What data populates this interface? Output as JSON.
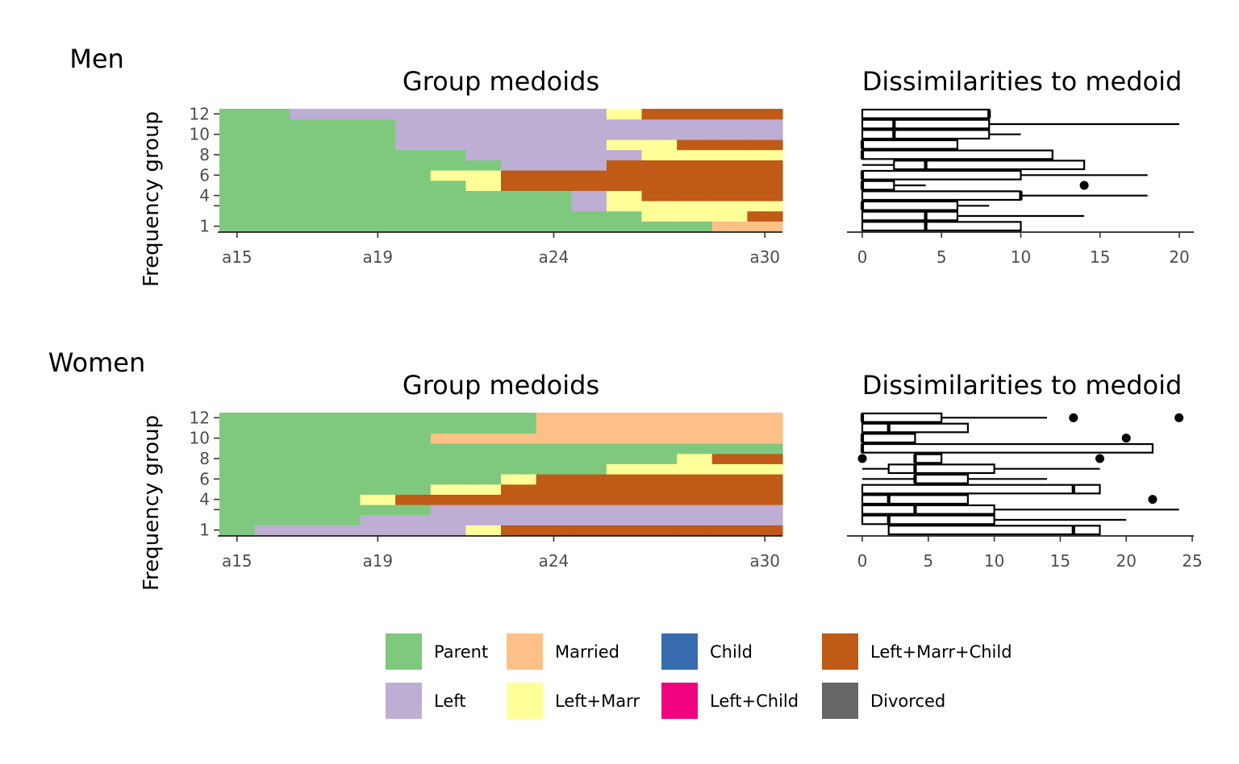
{
  "legend": [
    {
      "label": "Parent",
      "color": "#7FC97F"
    },
    {
      "label": "Married",
      "color": "#FDC086"
    },
    {
      "label": "Child",
      "color": "#386CB0"
    },
    {
      "label": "Left+Marr+Child",
      "color": "#BF5B17"
    },
    {
      "label": "Left",
      "color": "#BEAED4"
    },
    {
      "label": "Left+Marr",
      "color": "#FFFF99"
    },
    {
      "label": "Left+Child",
      "color": "#F0027F"
    },
    {
      "label": "Divorced",
      "color": "#666666"
    }
  ],
  "chart_data": [
    {
      "type": "heatmap",
      "panel": "Men",
      "title": "Group medoids",
      "ylabel": "Frequency group",
      "xlabel": "",
      "time_points": [
        "a15",
        "a16",
        "a17",
        "a18",
        "a19",
        "a20",
        "a21",
        "a22",
        "a23",
        "a24",
        "a25",
        "a26",
        "a27",
        "a28",
        "a29",
        "a30"
      ],
      "x_ticks": [
        "a15",
        "a19",
        "a24",
        "a30"
      ],
      "y_ticks": [
        "1",
        "",
        "4",
        "6",
        "8",
        "10",
        "12"
      ],
      "rows": [
        {
          "group": 1,
          "states": [
            "Parent",
            "Parent",
            "Parent",
            "Parent",
            "Parent",
            "Parent",
            "Parent",
            "Parent",
            "Parent",
            "Parent",
            "Parent",
            "Parent",
            "Parent",
            "Parent",
            "Married",
            "Married"
          ]
        },
        {
          "group": 2,
          "states": [
            "Parent",
            "Parent",
            "Parent",
            "Parent",
            "Parent",
            "Parent",
            "Parent",
            "Parent",
            "Parent",
            "Parent",
            "Parent",
            "Parent",
            "Left+Marr",
            "Left+Marr",
            "Left+Marr",
            "Left+Marr+Child"
          ]
        },
        {
          "group": 3,
          "states": [
            "Parent",
            "Parent",
            "Parent",
            "Parent",
            "Parent",
            "Parent",
            "Parent",
            "Parent",
            "Parent",
            "Parent",
            "Left",
            "Left+Marr",
            "Left+Marr",
            "Left+Marr",
            "Left+Marr",
            "Left+Marr"
          ]
        },
        {
          "group": 4,
          "states": [
            "Parent",
            "Parent",
            "Parent",
            "Parent",
            "Parent",
            "Parent",
            "Parent",
            "Parent",
            "Parent",
            "Parent",
            "Left",
            "Left+Marr",
            "Left+Marr+Child",
            "Left+Marr+Child",
            "Left+Marr+Child",
            "Left+Marr+Child"
          ]
        },
        {
          "group": 5,
          "states": [
            "Parent",
            "Parent",
            "Parent",
            "Parent",
            "Parent",
            "Parent",
            "Parent",
            "Left+Marr",
            "Left+Marr+Child",
            "Left+Marr+Child",
            "Left+Marr+Child",
            "Left+Marr+Child",
            "Left+Marr+Child",
            "Left+Marr+Child",
            "Left+Marr+Child",
            "Left+Marr+Child"
          ]
        },
        {
          "group": 6,
          "states": [
            "Parent",
            "Parent",
            "Parent",
            "Parent",
            "Parent",
            "Parent",
            "Left+Marr",
            "Left+Marr",
            "Left+Marr+Child",
            "Left+Marr+Child",
            "Left+Marr+Child",
            "Left+Marr+Child",
            "Left+Marr+Child",
            "Left+Marr+Child",
            "Left+Marr+Child",
            "Left+Marr+Child"
          ]
        },
        {
          "group": 7,
          "states": [
            "Parent",
            "Parent",
            "Parent",
            "Parent",
            "Parent",
            "Parent",
            "Parent",
            "Parent",
            "Left",
            "Left",
            "Left",
            "Left+Marr+Child",
            "Left+Marr+Child",
            "Left+Marr+Child",
            "Left+Marr+Child",
            "Left+Marr+Child"
          ]
        },
        {
          "group": 8,
          "states": [
            "Parent",
            "Parent",
            "Parent",
            "Parent",
            "Parent",
            "Parent",
            "Parent",
            "Left",
            "Left",
            "Left",
            "Left",
            "Left",
            "Left+Marr",
            "Left+Marr",
            "Left+Marr",
            "Left+Marr"
          ]
        },
        {
          "group": 9,
          "states": [
            "Parent",
            "Parent",
            "Parent",
            "Parent",
            "Parent",
            "Left",
            "Left",
            "Left",
            "Left",
            "Left",
            "Left",
            "Left+Marr",
            "Left+Marr",
            "Left+Marr+Child",
            "Left+Marr+Child",
            "Left+Marr+Child"
          ]
        },
        {
          "group": 10,
          "states": [
            "Parent",
            "Parent",
            "Parent",
            "Parent",
            "Parent",
            "Left",
            "Left",
            "Left",
            "Left",
            "Left",
            "Left",
            "Left",
            "Left",
            "Left",
            "Left",
            "Left"
          ]
        },
        {
          "group": 11,
          "states": [
            "Parent",
            "Parent",
            "Parent",
            "Parent",
            "Parent",
            "Left",
            "Left",
            "Left",
            "Left",
            "Left",
            "Left",
            "Left",
            "Left",
            "Left",
            "Left",
            "Left"
          ]
        },
        {
          "group": 12,
          "states": [
            "Parent",
            "Parent",
            "Left",
            "Left",
            "Left",
            "Left",
            "Left",
            "Left",
            "Left",
            "Left",
            "Left",
            "Left+Marr",
            "Left+Marr+Child",
            "Left+Marr+Child",
            "Left+Marr+Child",
            "Left+Marr+Child"
          ]
        }
      ]
    },
    {
      "type": "boxplot",
      "panel": "Men",
      "title": "Dissimilarities to medoid",
      "xlim": [
        0,
        20
      ],
      "x_ticks": [
        0,
        5,
        10,
        15,
        20
      ],
      "boxes": [
        {
          "group": 1,
          "min": 0,
          "q1": 0,
          "median": 4,
          "q3": 10,
          "max": 10,
          "outliers": []
        },
        {
          "group": 2,
          "min": 0,
          "q1": 0,
          "median": 4,
          "q3": 6,
          "max": 14,
          "outliers": []
        },
        {
          "group": 3,
          "min": 0,
          "q1": 0,
          "median": 0,
          "q3": 6,
          "max": 8,
          "outliers": []
        },
        {
          "group": 4,
          "min": 0,
          "q1": 0,
          "median": 10,
          "q3": 10,
          "max": 18,
          "outliers": []
        },
        {
          "group": 5,
          "min": 0,
          "q1": 0,
          "median": 0,
          "q3": 2,
          "max": 4,
          "outliers": [
            14
          ]
        },
        {
          "group": 6,
          "min": 0,
          "q1": 0,
          "median": 0,
          "q3": 10,
          "max": 18,
          "outliers": []
        },
        {
          "group": 7,
          "min": 0,
          "q1": 2,
          "median": 4,
          "q3": 14,
          "max": 14,
          "outliers": []
        },
        {
          "group": 8,
          "min": 0,
          "q1": 0,
          "median": 0,
          "q3": 12,
          "max": 12,
          "outliers": []
        },
        {
          "group": 9,
          "min": 0,
          "q1": 0,
          "median": 0,
          "q3": 6,
          "max": 6,
          "outliers": []
        },
        {
          "group": 10,
          "min": 0,
          "q1": 0,
          "median": 2,
          "q3": 8,
          "max": 10,
          "outliers": []
        },
        {
          "group": 11,
          "min": 0,
          "q1": 0,
          "median": 2,
          "q3": 8,
          "max": 20,
          "outliers": []
        },
        {
          "group": 12,
          "min": 0,
          "q1": 0,
          "median": 8,
          "q3": 8,
          "max": 8,
          "outliers": []
        }
      ]
    },
    {
      "type": "heatmap",
      "panel": "Women",
      "title": "Group medoids",
      "ylabel": "Frequency group",
      "xlabel": "",
      "time_points": [
        "a15",
        "a16",
        "a17",
        "a18",
        "a19",
        "a20",
        "a21",
        "a22",
        "a23",
        "a24",
        "a25",
        "a26",
        "a27",
        "a28",
        "a29",
        "a30"
      ],
      "x_ticks": [
        "a15",
        "a19",
        "a24",
        "a30"
      ],
      "y_ticks": [
        "1",
        "",
        "4",
        "6",
        "8",
        "10",
        "12"
      ],
      "rows": [
        {
          "group": 1,
          "states": [
            "Parent",
            "Left",
            "Left",
            "Left",
            "Left",
            "Left",
            "Left",
            "Left+Marr",
            "Left+Marr+Child",
            "Left+Marr+Child",
            "Left+Marr+Child",
            "Left+Marr+Child",
            "Left+Marr+Child",
            "Left+Marr+Child",
            "Left+Marr+Child",
            "Left+Marr+Child"
          ]
        },
        {
          "group": 2,
          "states": [
            "Parent",
            "Parent",
            "Parent",
            "Parent",
            "Left",
            "Left",
            "Left",
            "Left",
            "Left",
            "Left",
            "Left",
            "Left",
            "Left",
            "Left",
            "Left",
            "Left"
          ]
        },
        {
          "group": 3,
          "states": [
            "Parent",
            "Parent",
            "Parent",
            "Parent",
            "Parent",
            "Parent",
            "Left",
            "Left",
            "Left",
            "Left",
            "Left",
            "Left",
            "Left",
            "Left",
            "Left",
            "Left"
          ]
        },
        {
          "group": 4,
          "states": [
            "Parent",
            "Parent",
            "Parent",
            "Parent",
            "Left+Marr",
            "Left+Marr+Child",
            "Left+Marr+Child",
            "Left+Marr+Child",
            "Left+Marr+Child",
            "Left+Marr+Child",
            "Left+Marr+Child",
            "Left+Marr+Child",
            "Left+Marr+Child",
            "Left+Marr+Child",
            "Left+Marr+Child",
            "Left+Marr+Child"
          ]
        },
        {
          "group": 5,
          "states": [
            "Parent",
            "Parent",
            "Parent",
            "Parent",
            "Parent",
            "Parent",
            "Left+Marr",
            "Left+Marr",
            "Left+Marr+Child",
            "Left+Marr+Child",
            "Left+Marr+Child",
            "Left+Marr+Child",
            "Left+Marr+Child",
            "Left+Marr+Child",
            "Left+Marr+Child",
            "Left+Marr+Child"
          ]
        },
        {
          "group": 6,
          "states": [
            "Parent",
            "Parent",
            "Parent",
            "Parent",
            "Parent",
            "Parent",
            "Parent",
            "Parent",
            "Left+Marr",
            "Left+Marr+Child",
            "Left+Marr+Child",
            "Left+Marr+Child",
            "Left+Marr+Child",
            "Left+Marr+Child",
            "Left+Marr+Child",
            "Left+Marr+Child"
          ]
        },
        {
          "group": 7,
          "states": [
            "Parent",
            "Parent",
            "Parent",
            "Parent",
            "Parent",
            "Parent",
            "Parent",
            "Parent",
            "Parent",
            "Parent",
            "Parent",
            "Left+Marr",
            "Left+Marr",
            "Left+Marr",
            "Left+Marr",
            "Left+Marr"
          ]
        },
        {
          "group": 8,
          "states": [
            "Parent",
            "Parent",
            "Parent",
            "Parent",
            "Parent",
            "Parent",
            "Parent",
            "Parent",
            "Parent",
            "Parent",
            "Parent",
            "Parent",
            "Parent",
            "Left+Marr",
            "Left+Marr+Child",
            "Left+Marr+Child"
          ]
        },
        {
          "group": 9,
          "states": [
            "Parent",
            "Parent",
            "Parent",
            "Parent",
            "Parent",
            "Parent",
            "Parent",
            "Parent",
            "Parent",
            "Parent",
            "Parent",
            "Parent",
            "Parent",
            "Parent",
            "Parent",
            "Parent"
          ]
        },
        {
          "group": 10,
          "states": [
            "Parent",
            "Parent",
            "Parent",
            "Parent",
            "Parent",
            "Parent",
            "Married",
            "Married",
            "Married",
            "Married",
            "Married",
            "Married",
            "Married",
            "Married",
            "Married",
            "Married"
          ]
        },
        {
          "group": 11,
          "states": [
            "Parent",
            "Parent",
            "Parent",
            "Parent",
            "Parent",
            "Parent",
            "Parent",
            "Parent",
            "Parent",
            "Married",
            "Married",
            "Married",
            "Married",
            "Married",
            "Married",
            "Married"
          ]
        },
        {
          "group": 12,
          "states": [
            "Parent",
            "Parent",
            "Parent",
            "Parent",
            "Parent",
            "Parent",
            "Parent",
            "Parent",
            "Parent",
            "Married",
            "Married",
            "Married",
            "Married",
            "Married",
            "Married",
            "Married"
          ]
        }
      ]
    },
    {
      "type": "boxplot",
      "panel": "Women",
      "title": "Dissimilarities to medoid",
      "xlim": [
        0,
        25
      ],
      "x_ticks": [
        0,
        5,
        10,
        15,
        20,
        25
      ],
      "boxes": [
        {
          "group": 1,
          "min": 2,
          "q1": 2,
          "median": 16,
          "q3": 18,
          "max": 18,
          "outliers": []
        },
        {
          "group": 2,
          "min": 0,
          "q1": 0,
          "median": 2,
          "q3": 10,
          "max": 20,
          "outliers": []
        },
        {
          "group": 3,
          "min": 0,
          "q1": 0,
          "median": 4,
          "q3": 10,
          "max": 24,
          "outliers": []
        },
        {
          "group": 4,
          "min": 0,
          "q1": 0,
          "median": 2,
          "q3": 8,
          "max": 8,
          "outliers": [
            22
          ]
        },
        {
          "group": 5,
          "min": 0,
          "q1": 0,
          "median": 16,
          "q3": 18,
          "max": 18,
          "outliers": []
        },
        {
          "group": 6,
          "min": 0,
          "q1": 4,
          "median": 4,
          "q3": 8,
          "max": 14,
          "outliers": []
        },
        {
          "group": 7,
          "min": 0,
          "q1": 2,
          "median": 4,
          "q3": 10,
          "max": 18,
          "outliers": []
        },
        {
          "group": 8,
          "min": 4,
          "q1": 4,
          "median": 4,
          "q3": 6,
          "max": 6,
          "outliers": [
            0,
            18
          ]
        },
        {
          "group": 9,
          "min": 0,
          "q1": 0,
          "median": 0,
          "q3": 22,
          "max": 22,
          "outliers": []
        },
        {
          "group": 10,
          "min": 0,
          "q1": 0,
          "median": 0,
          "q3": 4,
          "max": 4,
          "outliers": [
            20
          ]
        },
        {
          "group": 11,
          "min": 0,
          "q1": 0,
          "median": 2,
          "q3": 8,
          "max": 8,
          "outliers": []
        },
        {
          "group": 12,
          "min": 0,
          "q1": 0,
          "median": 0,
          "q3": 6,
          "max": 14,
          "outliers": [
            16,
            24
          ]
        }
      ]
    }
  ]
}
